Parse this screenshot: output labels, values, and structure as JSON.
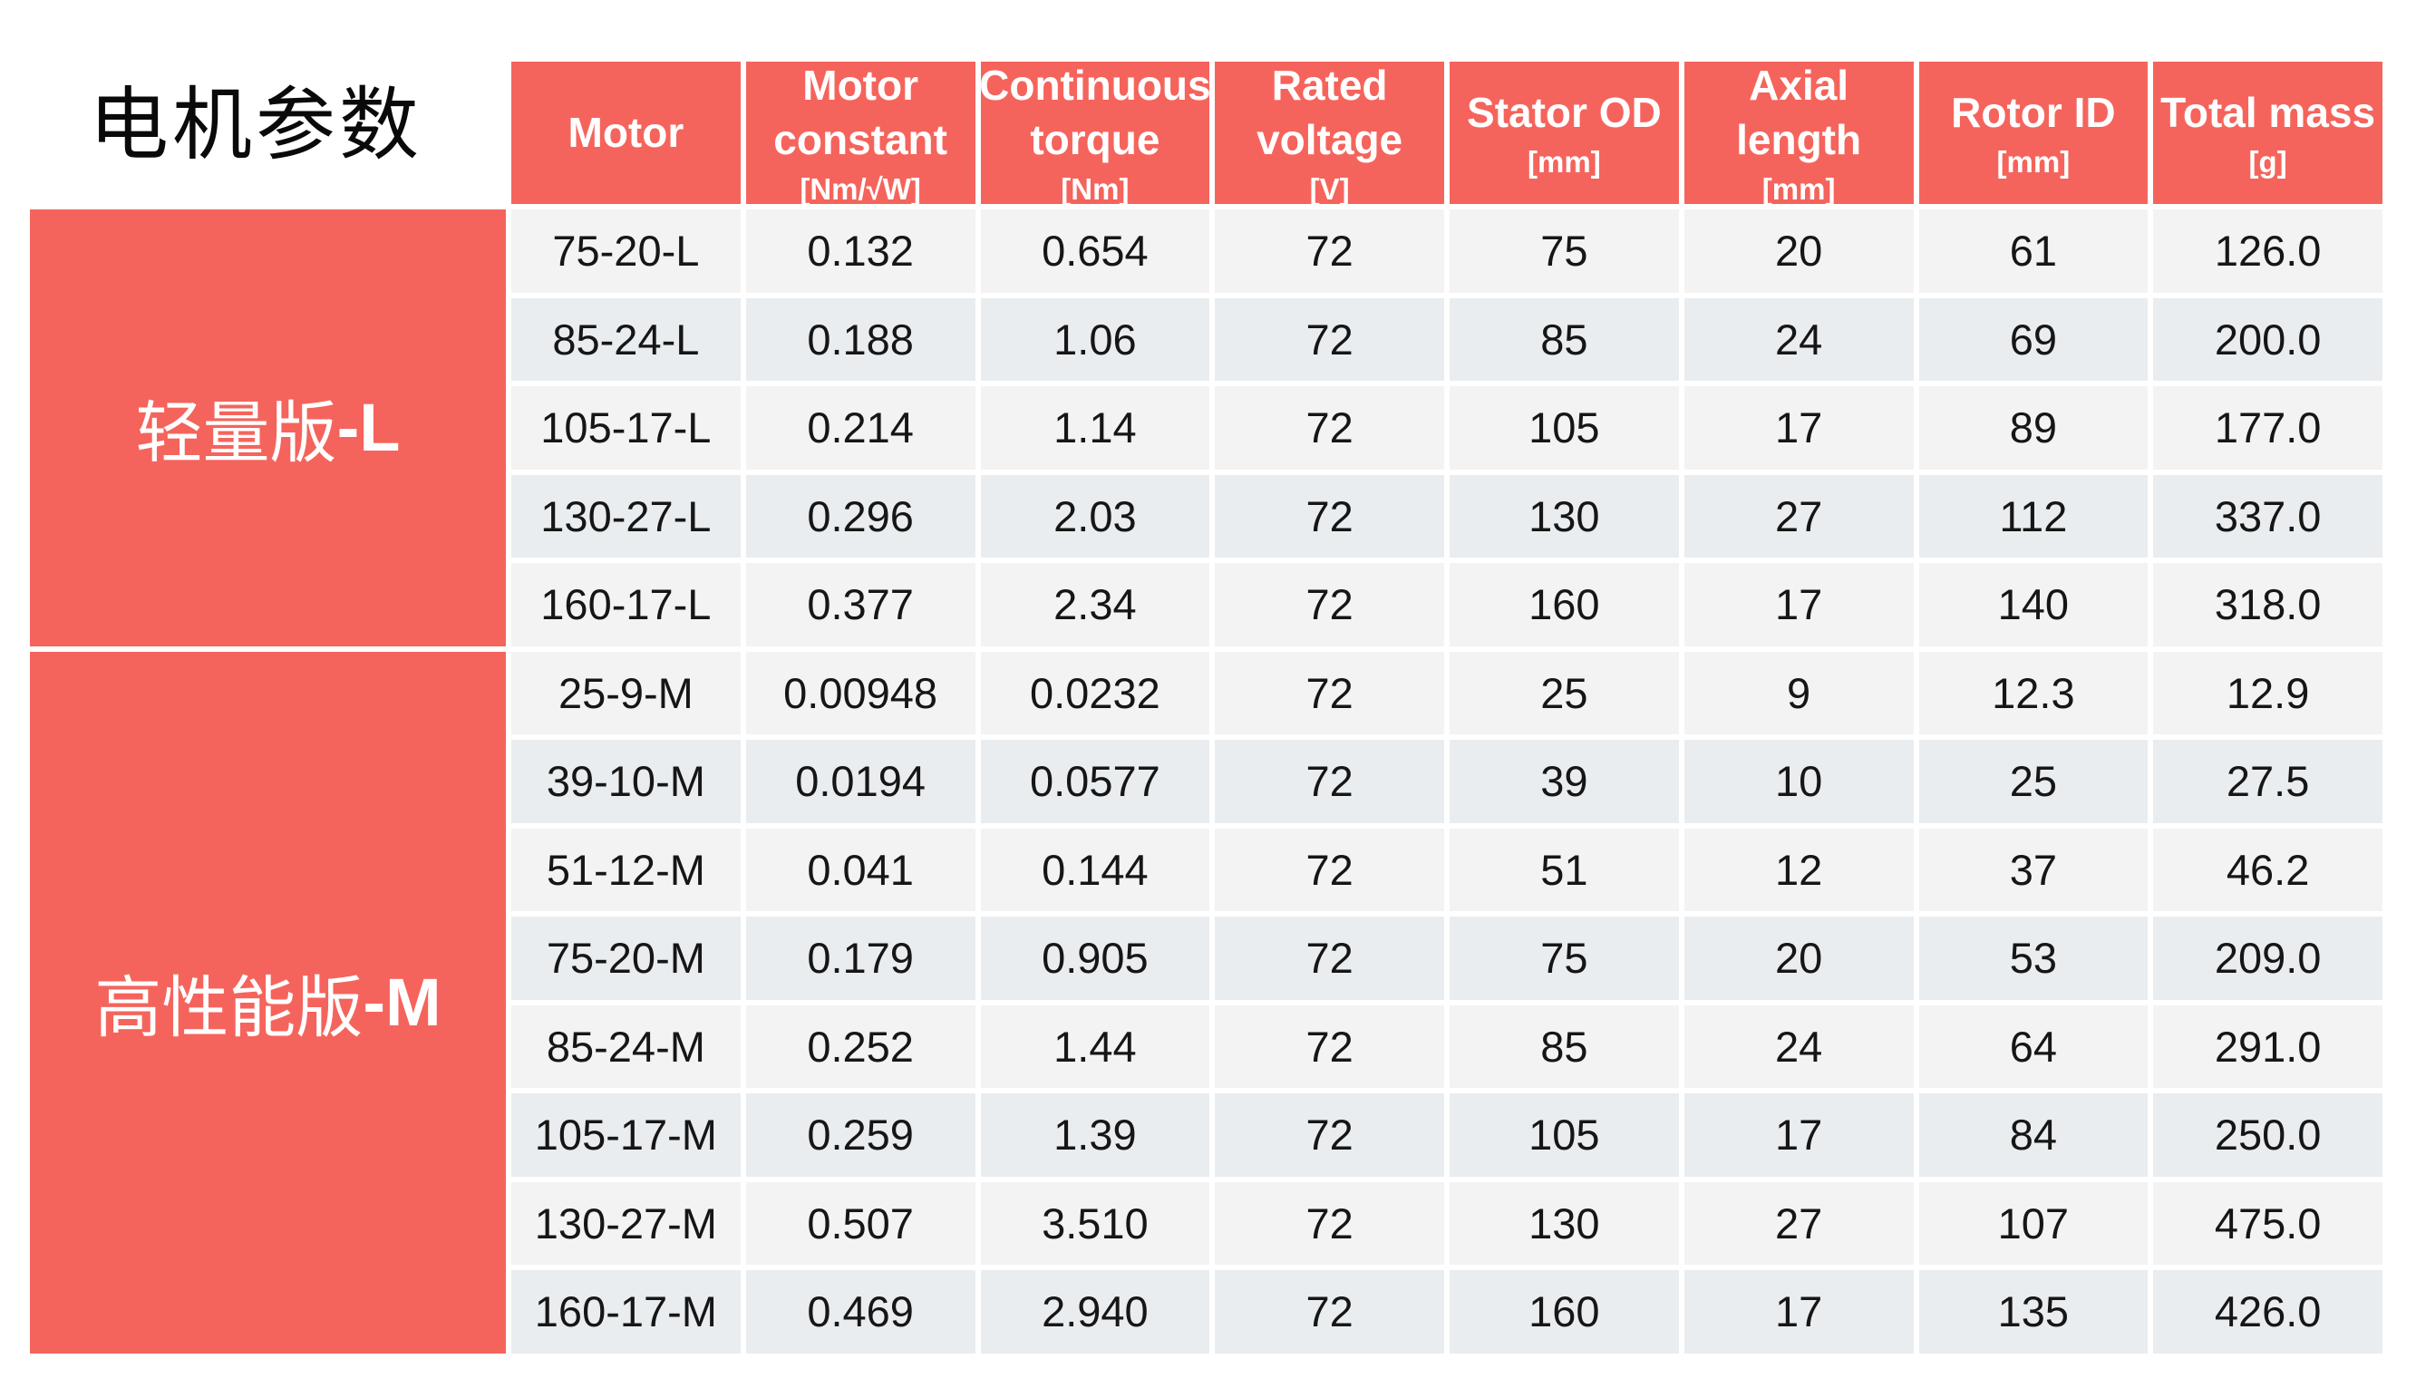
{
  "page": {
    "title": "电机参数",
    "background": "#FFFFFF"
  },
  "colors": {
    "accent": "#F5645C",
    "row_light": "#F3F3F3",
    "row_alt": "#E9EDF0",
    "header_text": "#FFFFFF",
    "body_text": "#161616"
  },
  "sections": [
    {
      "label_cjk": "轻量版",
      "label_suffix": "-L",
      "row_count": 5
    },
    {
      "label_cjk": "高性能版",
      "label_suffix": "-M",
      "row_count": 8
    }
  ],
  "table": {
    "columns": [
      {
        "title": "Motor",
        "unit": ""
      },
      {
        "title": "Motor constant",
        "unit": "[Nm/√W]"
      },
      {
        "title": "Continuous torque",
        "unit": "[Nm]"
      },
      {
        "title": "Rated voltage",
        "unit": "[V]"
      },
      {
        "title": "Stator OD",
        "unit": "[mm]"
      },
      {
        "title": "Axial length",
        "unit": "[mm]"
      },
      {
        "title": "Rotor ID",
        "unit": "[mm]"
      },
      {
        "title": "Total mass",
        "unit": "[g]"
      }
    ],
    "rows": [
      {
        "motor": "75-20-L",
        "values": [
          "0.132",
          "0.654",
          "72",
          "75",
          "20",
          "61",
          "126.0"
        ]
      },
      {
        "motor": "85-24-L",
        "values": [
          "0.188",
          "1.06",
          "72",
          "85",
          "24",
          "69",
          "200.0"
        ]
      },
      {
        "motor": "105-17-L",
        "values": [
          "0.214",
          "1.14",
          "72",
          "105",
          "17",
          "89",
          "177.0"
        ]
      },
      {
        "motor": "130-27-L",
        "values": [
          "0.296",
          "2.03",
          "72",
          "130",
          "27",
          "112",
          "337.0"
        ]
      },
      {
        "motor": "160-17-L",
        "values": [
          "0.377",
          "2.34",
          "72",
          "160",
          "17",
          "140",
          "318.0"
        ]
      },
      {
        "motor": "25-9-M",
        "values": [
          "0.00948",
          "0.0232",
          "72",
          "25",
          "9",
          "12.3",
          "12.9"
        ]
      },
      {
        "motor": "39-10-M",
        "values": [
          "0.0194",
          "0.0577",
          "72",
          "39",
          "10",
          "25",
          "27.5"
        ]
      },
      {
        "motor": "51-12-M",
        "values": [
          "0.041",
          "0.144",
          "72",
          "51",
          "12",
          "37",
          "46.2"
        ]
      },
      {
        "motor": "75-20-M",
        "values": [
          "0.179",
          "0.905",
          "72",
          "75",
          "20",
          "53",
          "209.0"
        ]
      },
      {
        "motor": "85-24-M",
        "values": [
          "0.252",
          "1.44",
          "72",
          "85",
          "24",
          "64",
          "291.0"
        ]
      },
      {
        "motor": "105-17-M",
        "values": [
          "0.259",
          "1.39",
          "72",
          "105",
          "17",
          "84",
          "250.0"
        ]
      },
      {
        "motor": "130-27-M",
        "values": [
          "0.507",
          "3.510",
          "72",
          "130",
          "27",
          "107",
          "475.0"
        ]
      },
      {
        "motor": "160-17-M",
        "values": [
          "0.469",
          "2.940",
          "72",
          "160",
          "17",
          "135",
          "426.0"
        ]
      }
    ]
  }
}
